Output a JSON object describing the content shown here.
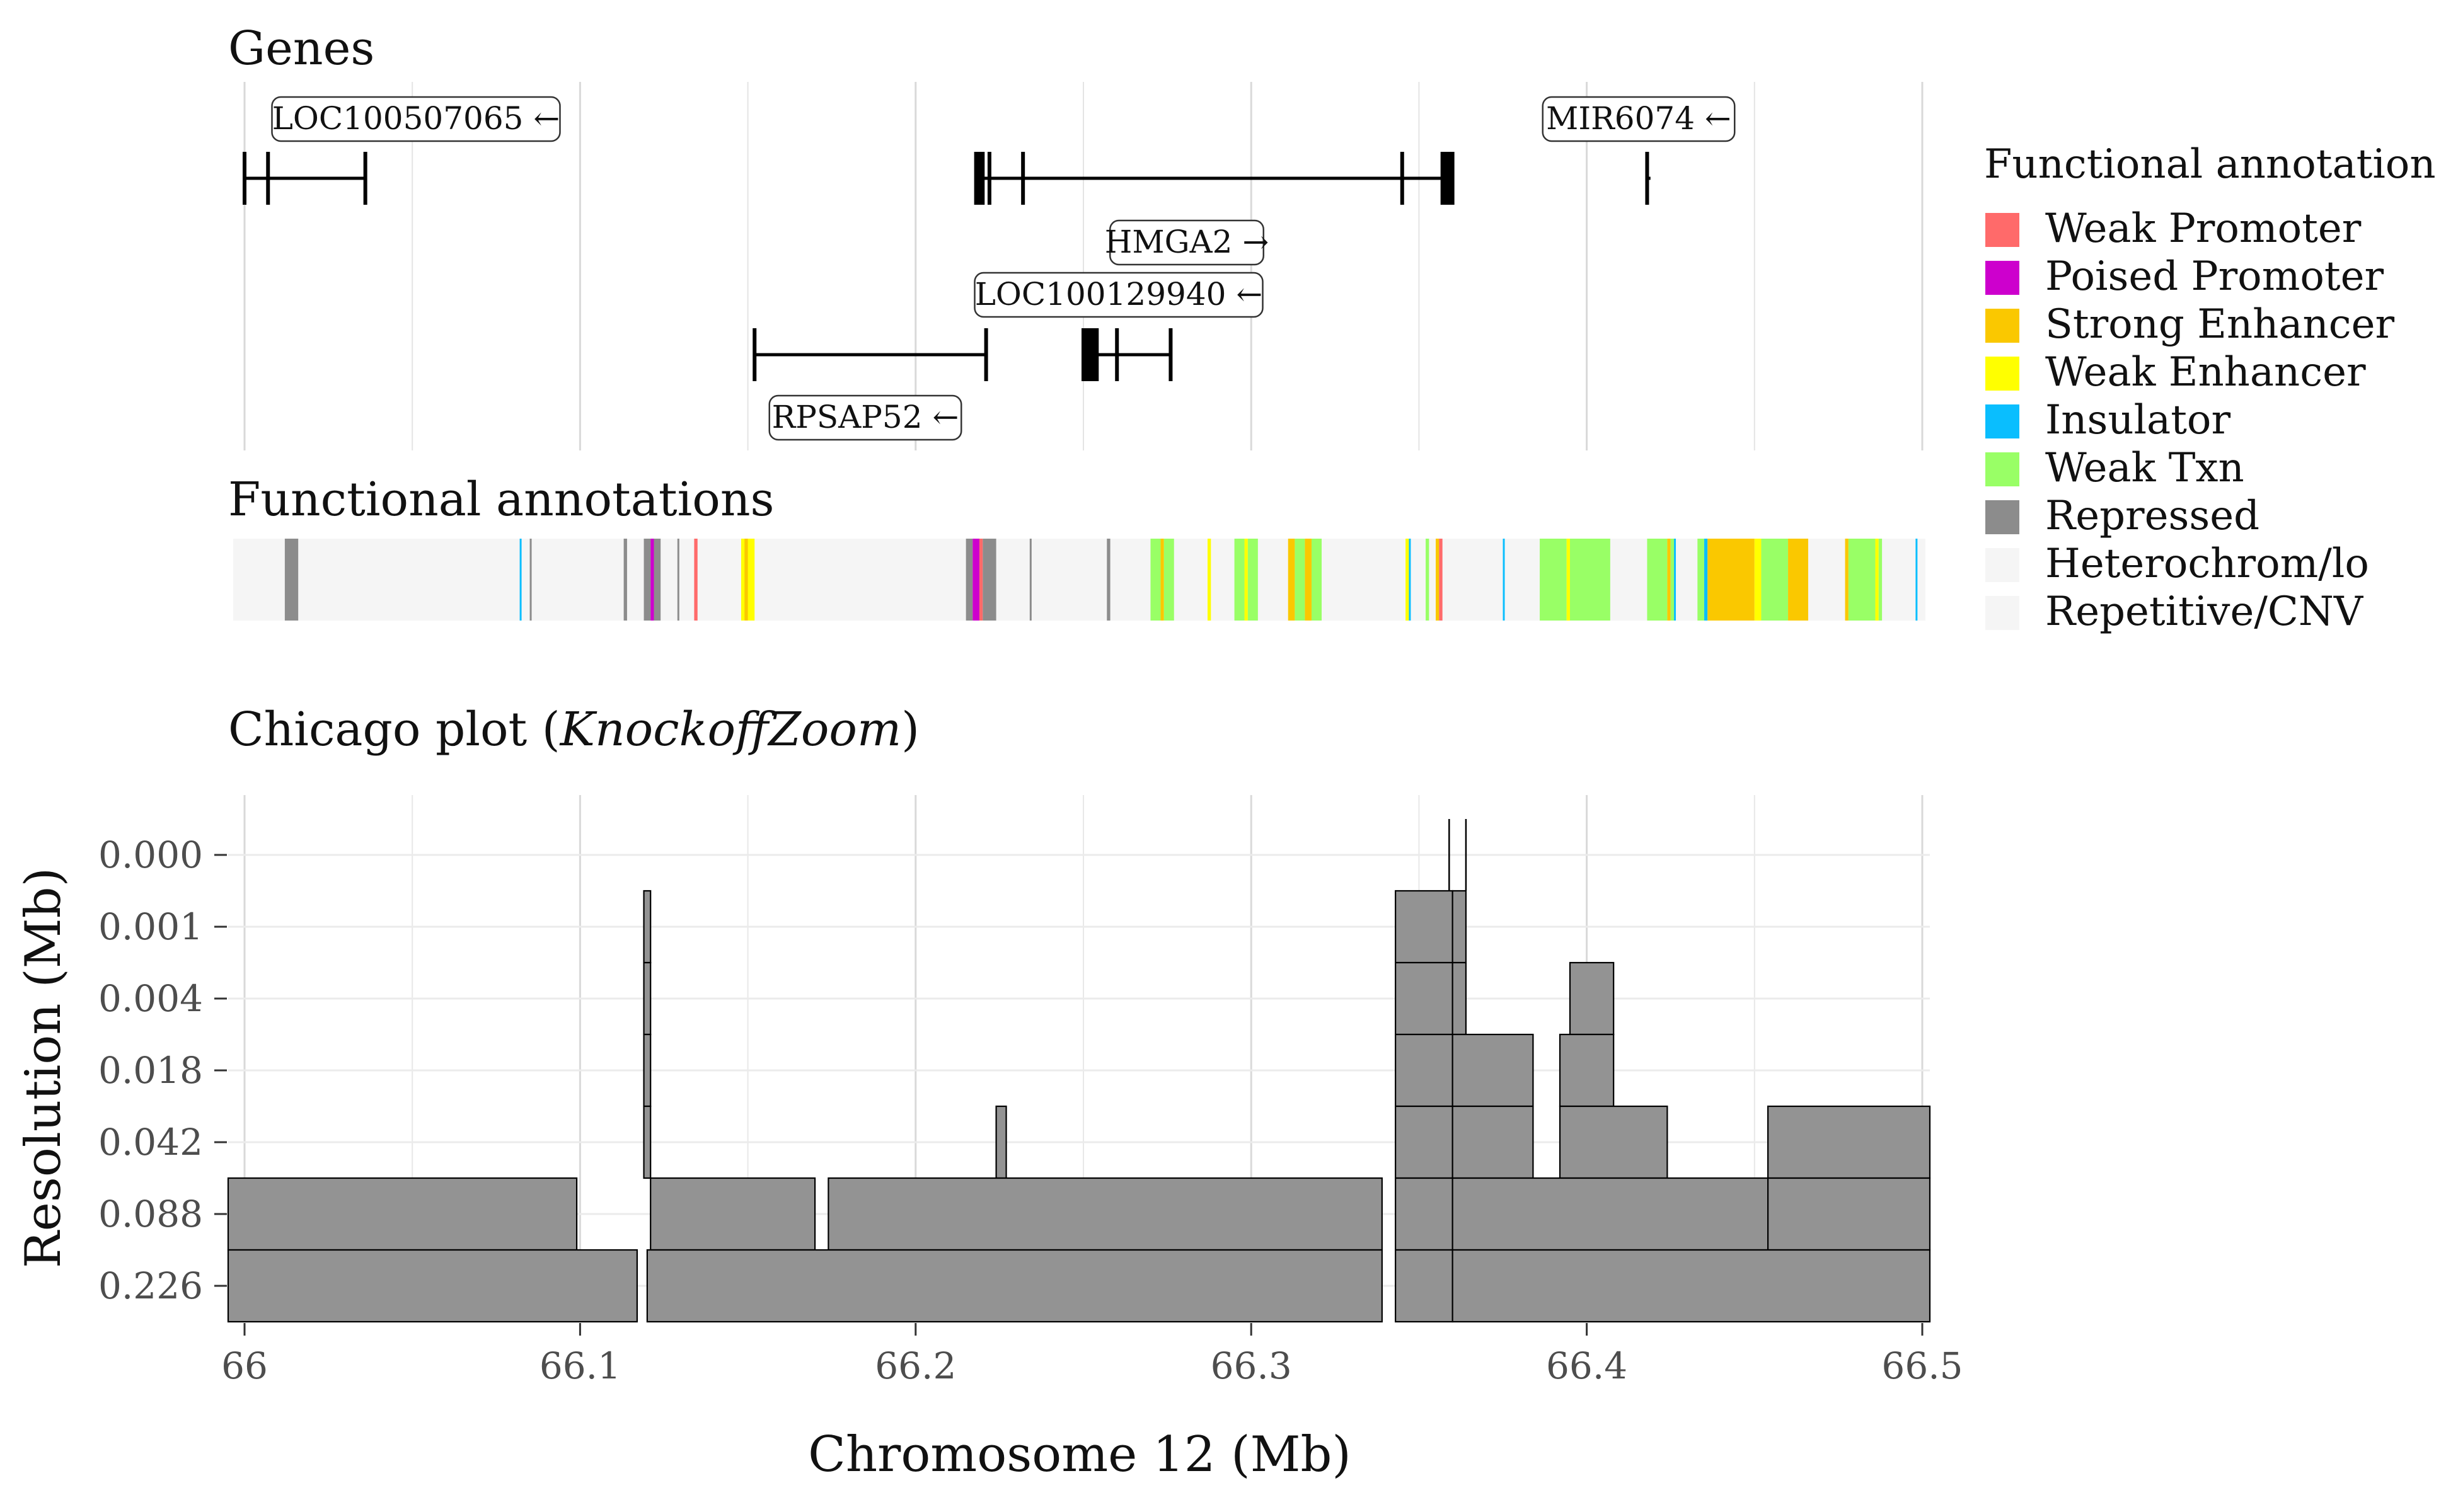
{
  "panels": {
    "genes_title": "Genes",
    "annotations_title": "Functional annotations",
    "chicago_title_prefix": "Chicago plot (",
    "chicago_title_method": "KnockoffZoom",
    "chicago_title_suffix": ")"
  },
  "genes": [
    {
      "name": "LOC100507065",
      "arrow": "←",
      "start": 66.0,
      "end": 66.036,
      "row": 1,
      "exons": [
        66.0,
        66.007,
        66.036
      ]
    },
    {
      "name": "HMGA2",
      "arrow": "→",
      "start": 66.218,
      "end": 66.36,
      "row": 1,
      "exons": [
        66.218,
        66.219,
        66.22,
        66.222,
        66.232,
        66.345,
        66.357,
        66.358,
        66.359,
        66.36
      ]
    },
    {
      "name": "MIR6074",
      "arrow": "←",
      "start": 66.418,
      "end": 66.419,
      "row": 1,
      "exons": [
        66.418
      ]
    },
    {
      "name": "RPSAP52",
      "arrow": "←",
      "start": 66.152,
      "end": 66.221,
      "row": 2,
      "exons": [
        66.152,
        66.221
      ]
    },
    {
      "name": "LOC100129940",
      "arrow": "←",
      "start": 66.25,
      "end": 66.276,
      "row": 2,
      "exons": [
        66.25,
        66.251,
        66.252,
        66.253,
        66.254,
        66.26,
        66.276
      ]
    }
  ],
  "legend": {
    "title": "Functional annotation",
    "items": [
      {
        "label": "Weak Promoter",
        "color": "#FF6A6A"
      },
      {
        "label": "Poised Promoter",
        "color": "#CD00CD"
      },
      {
        "label": "Strong Enhancer",
        "color": "#FAC800"
      },
      {
        "label": "Weak Enhancer",
        "color": "#FFFF00"
      },
      {
        "label": "Insulator",
        "color": "#0ABEFE"
      },
      {
        "label": "Weak Txn",
        "color": "#99FF66"
      },
      {
        "label": "Repressed",
        "color": "#8C8C8C"
      },
      {
        "label": "Heterochrom/lo",
        "color": "#F5F5F5"
      },
      {
        "label": "Repetitive/CNV",
        "color": "#F5F5F5"
      }
    ]
  },
  "annotations": [
    {
      "start": 66.012,
      "end": 66.016,
      "type": "Repressed"
    },
    {
      "start": 66.082,
      "end": 66.0825,
      "type": "Insulator"
    },
    {
      "start": 66.085,
      "end": 66.0855,
      "type": "Repressed"
    },
    {
      "start": 66.113,
      "end": 66.114,
      "type": "Repressed"
    },
    {
      "start": 66.119,
      "end": 66.121,
      "type": "Repressed"
    },
    {
      "start": 66.121,
      "end": 66.122,
      "type": "Poised Promoter"
    },
    {
      "start": 66.122,
      "end": 66.124,
      "type": "Repressed"
    },
    {
      "start": 66.129,
      "end": 66.1295,
      "type": "Repressed"
    },
    {
      "start": 66.134,
      "end": 66.135,
      "type": "Weak Promoter"
    },
    {
      "start": 66.148,
      "end": 66.152,
      "type": "Weak Enhancer"
    },
    {
      "start": 66.149,
      "end": 66.15,
      "type": "Strong Enhancer"
    },
    {
      "start": 66.215,
      "end": 66.217,
      "type": "Repressed"
    },
    {
      "start": 66.217,
      "end": 66.219,
      "type": "Poised Promoter"
    },
    {
      "start": 66.219,
      "end": 66.22,
      "type": "Weak Promoter"
    },
    {
      "start": 66.22,
      "end": 66.224,
      "type": "Repressed"
    },
    {
      "start": 66.234,
      "end": 66.2345,
      "type": "Repressed"
    },
    {
      "start": 66.257,
      "end": 66.258,
      "type": "Repressed"
    },
    {
      "start": 66.27,
      "end": 66.273,
      "type": "Weak Txn"
    },
    {
      "start": 66.273,
      "end": 66.274,
      "type": "Strong Enhancer"
    },
    {
      "start": 66.274,
      "end": 66.277,
      "type": "Weak Txn"
    },
    {
      "start": 66.287,
      "end": 66.288,
      "type": "Weak Enhancer"
    },
    {
      "start": 66.295,
      "end": 66.298,
      "type": "Weak Txn"
    },
    {
      "start": 66.298,
      "end": 66.299,
      "type": "Weak Enhancer"
    },
    {
      "start": 66.299,
      "end": 66.302,
      "type": "Weak Txn"
    },
    {
      "start": 66.311,
      "end": 66.313,
      "type": "Strong Enhancer"
    },
    {
      "start": 66.313,
      "end": 66.316,
      "type": "Weak Txn"
    },
    {
      "start": 66.316,
      "end": 66.318,
      "type": "Strong Enhancer"
    },
    {
      "start": 66.318,
      "end": 66.321,
      "type": "Weak Txn"
    },
    {
      "start": 66.346,
      "end": 66.347,
      "type": "Weak Enhancer"
    },
    {
      "start": 66.347,
      "end": 66.3475,
      "type": "Insulator"
    },
    {
      "start": 66.352,
      "end": 66.353,
      "type": "Weak Txn"
    },
    {
      "start": 66.355,
      "end": 66.356,
      "type": "Strong Enhancer"
    },
    {
      "start": 66.356,
      "end": 66.357,
      "type": "Weak Promoter"
    },
    {
      "start": 66.375,
      "end": 66.3755,
      "type": "Insulator"
    },
    {
      "start": 66.386,
      "end": 66.394,
      "type": "Weak Txn"
    },
    {
      "start": 66.394,
      "end": 66.395,
      "type": "Weak Enhancer"
    },
    {
      "start": 66.395,
      "end": 66.407,
      "type": "Weak Txn"
    },
    {
      "start": 66.418,
      "end": 66.424,
      "type": "Weak Txn"
    },
    {
      "start": 66.424,
      "end": 66.425,
      "type": "Strong Enhancer"
    },
    {
      "start": 66.425,
      "end": 66.426,
      "type": "Weak Txn"
    },
    {
      "start": 66.426,
      "end": 66.4265,
      "type": "Insulator"
    },
    {
      "start": 66.433,
      "end": 66.435,
      "type": "Weak Txn"
    },
    {
      "start": 66.435,
      "end": 66.436,
      "type": "Insulator"
    },
    {
      "start": 66.436,
      "end": 66.45,
      "type": "Strong Enhancer"
    },
    {
      "start": 66.45,
      "end": 66.452,
      "type": "Weak Enhancer"
    },
    {
      "start": 66.452,
      "end": 66.46,
      "type": "Weak Txn"
    },
    {
      "start": 66.46,
      "end": 66.466,
      "type": "Strong Enhancer"
    },
    {
      "start": 66.477,
      "end": 66.478,
      "type": "Strong Enhancer"
    },
    {
      "start": 66.478,
      "end": 66.486,
      "type": "Weak Txn"
    },
    {
      "start": 66.486,
      "end": 66.487,
      "type": "Weak Enhancer"
    },
    {
      "start": 66.487,
      "end": 66.488,
      "type": "Weak Txn"
    },
    {
      "start": 66.498,
      "end": 66.4985,
      "type": "Insulator"
    }
  ],
  "chart_data": {
    "type": "bar",
    "description_rows": "Each row is a resolution level; each rectangle is a discovered interval [start, end] in Mb",
    "xlabel": "Chromosome 12 (Mb)",
    "ylabel": "Resolution (Mb)",
    "xlim": [
      66.0,
      66.5
    ],
    "x_ticks": [
      "66",
      "66.1",
      "66.2",
      "66.3",
      "66.4",
      "66.5"
    ],
    "x_tick_values": [
      66.0,
      66.1,
      66.2,
      66.3,
      66.4,
      66.5
    ],
    "y_ticks": [
      "0.000",
      "0.001",
      "0.004",
      "0.018",
      "0.042",
      "0.088",
      "0.226"
    ],
    "grid": true,
    "intervals": [
      {
        "resolution": "0.000",
        "start": 66.359,
        "end": 66.3592
      },
      {
        "resolution": "0.000",
        "start": 66.364,
        "end": 66.3642
      },
      {
        "resolution": "0.001",
        "start": 66.119,
        "end": 66.121
      },
      {
        "resolution": "0.001",
        "start": 66.343,
        "end": 66.36
      },
      {
        "resolution": "0.001",
        "start": 66.36,
        "end": 66.364
      },
      {
        "resolution": "0.004",
        "start": 66.119,
        "end": 66.121
      },
      {
        "resolution": "0.004",
        "start": 66.343,
        "end": 66.36
      },
      {
        "resolution": "0.004",
        "start": 66.36,
        "end": 66.364
      },
      {
        "resolution": "0.004",
        "start": 66.395,
        "end": 66.408
      },
      {
        "resolution": "0.018",
        "start": 66.119,
        "end": 66.121
      },
      {
        "resolution": "0.018",
        "start": 66.343,
        "end": 66.36
      },
      {
        "resolution": "0.018",
        "start": 66.36,
        "end": 66.384
      },
      {
        "resolution": "0.018",
        "start": 66.392,
        "end": 66.408
      },
      {
        "resolution": "0.042",
        "start": 66.119,
        "end": 66.121
      },
      {
        "resolution": "0.042",
        "start": 66.224,
        "end": 66.227
      },
      {
        "resolution": "0.042",
        "start": 66.343,
        "end": 66.36
      },
      {
        "resolution": "0.042",
        "start": 66.36,
        "end": 66.384
      },
      {
        "resolution": "0.042",
        "start": 66.392,
        "end": 66.424
      },
      {
        "resolution": "0.042",
        "start": 66.454,
        "end": 66.505
      },
      {
        "resolution": "0.088",
        "start": 65.995,
        "end": 66.099
      },
      {
        "resolution": "0.088",
        "start": 66.121,
        "end": 66.17
      },
      {
        "resolution": "0.088",
        "start": 66.174,
        "end": 66.339
      },
      {
        "resolution": "0.088",
        "start": 66.343,
        "end": 66.36
      },
      {
        "resolution": "0.088",
        "start": 66.36,
        "end": 66.454
      },
      {
        "resolution": "0.088",
        "start": 66.454,
        "end": 66.505
      },
      {
        "resolution": "0.226",
        "start": 65.995,
        "end": 66.117
      },
      {
        "resolution": "0.226",
        "start": 66.12,
        "end": 66.339
      },
      {
        "resolution": "0.226",
        "start": 66.343,
        "end": 66.36
      },
      {
        "resolution": "0.226",
        "start": 66.36,
        "end": 66.505
      }
    ],
    "fill_color": "#939393"
  }
}
